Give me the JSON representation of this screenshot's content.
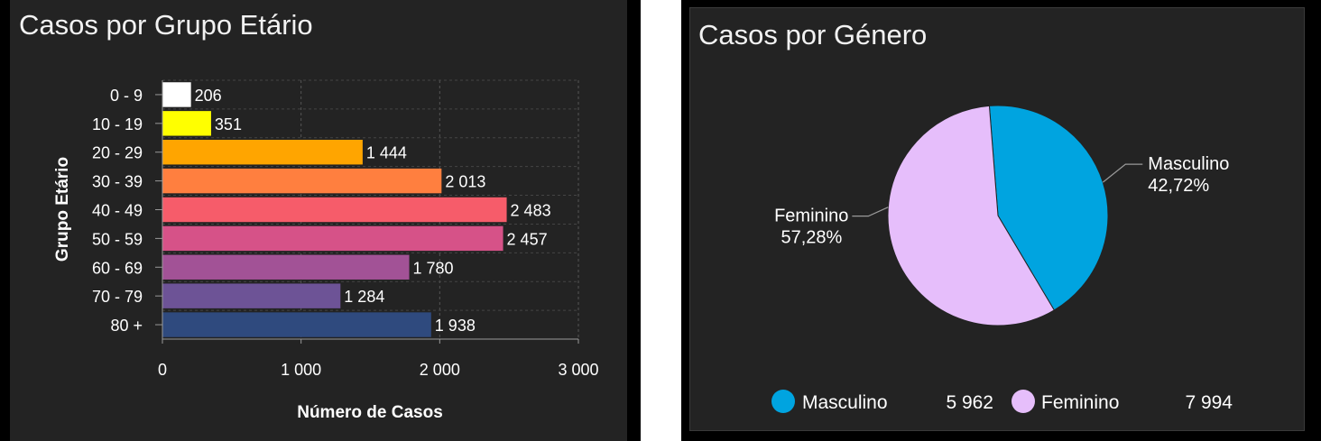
{
  "age_chart": {
    "title": "Casos por Grupo Etário",
    "chart_data": {
      "type": "bar",
      "orientation": "horizontal",
      "title": "Casos por Grupo Etário",
      "xlabel": "Número de Casos",
      "ylabel": "Grupo Etário",
      "categories": [
        "0 - 9",
        "10 - 19",
        "20 - 29",
        "30 - 39",
        "40 - 49",
        "50 - 59",
        "60 - 69",
        "70 - 79",
        "80 +"
      ],
      "values": [
        206,
        351,
        1444,
        2013,
        2483,
        2457,
        1780,
        1284,
        1938
      ],
      "value_labels": [
        "206",
        "351",
        "1 444",
        "2 013",
        "2 483",
        "2 457",
        "1 780",
        "1 284",
        "1 938"
      ],
      "colors": [
        "#ffffff",
        "#ffff00",
        "#ffa500",
        "#ff7f3f",
        "#f65c6a",
        "#d65288",
        "#a25296",
        "#6d5396",
        "#2f4a7e"
      ],
      "xlim": [
        0,
        3000
      ],
      "xticks": [
        0,
        1000,
        2000,
        3000
      ],
      "xtick_labels": [
        "0",
        "1 000",
        "2 000",
        "3 000"
      ],
      "grid": true
    }
  },
  "gender_chart": {
    "title": "Casos por Género",
    "chart_data": {
      "type": "pie",
      "title": "Casos por Género",
      "categories": [
        "Masculino",
        "Feminino"
      ],
      "values": [
        5962,
        7994
      ],
      "percent_labels": [
        "42,72%",
        "57,28%"
      ],
      "value_labels": [
        "5 962",
        "7 994"
      ],
      "colors": [
        "#00a4e0",
        "#e6befb"
      ],
      "legend": "bottom"
    }
  }
}
